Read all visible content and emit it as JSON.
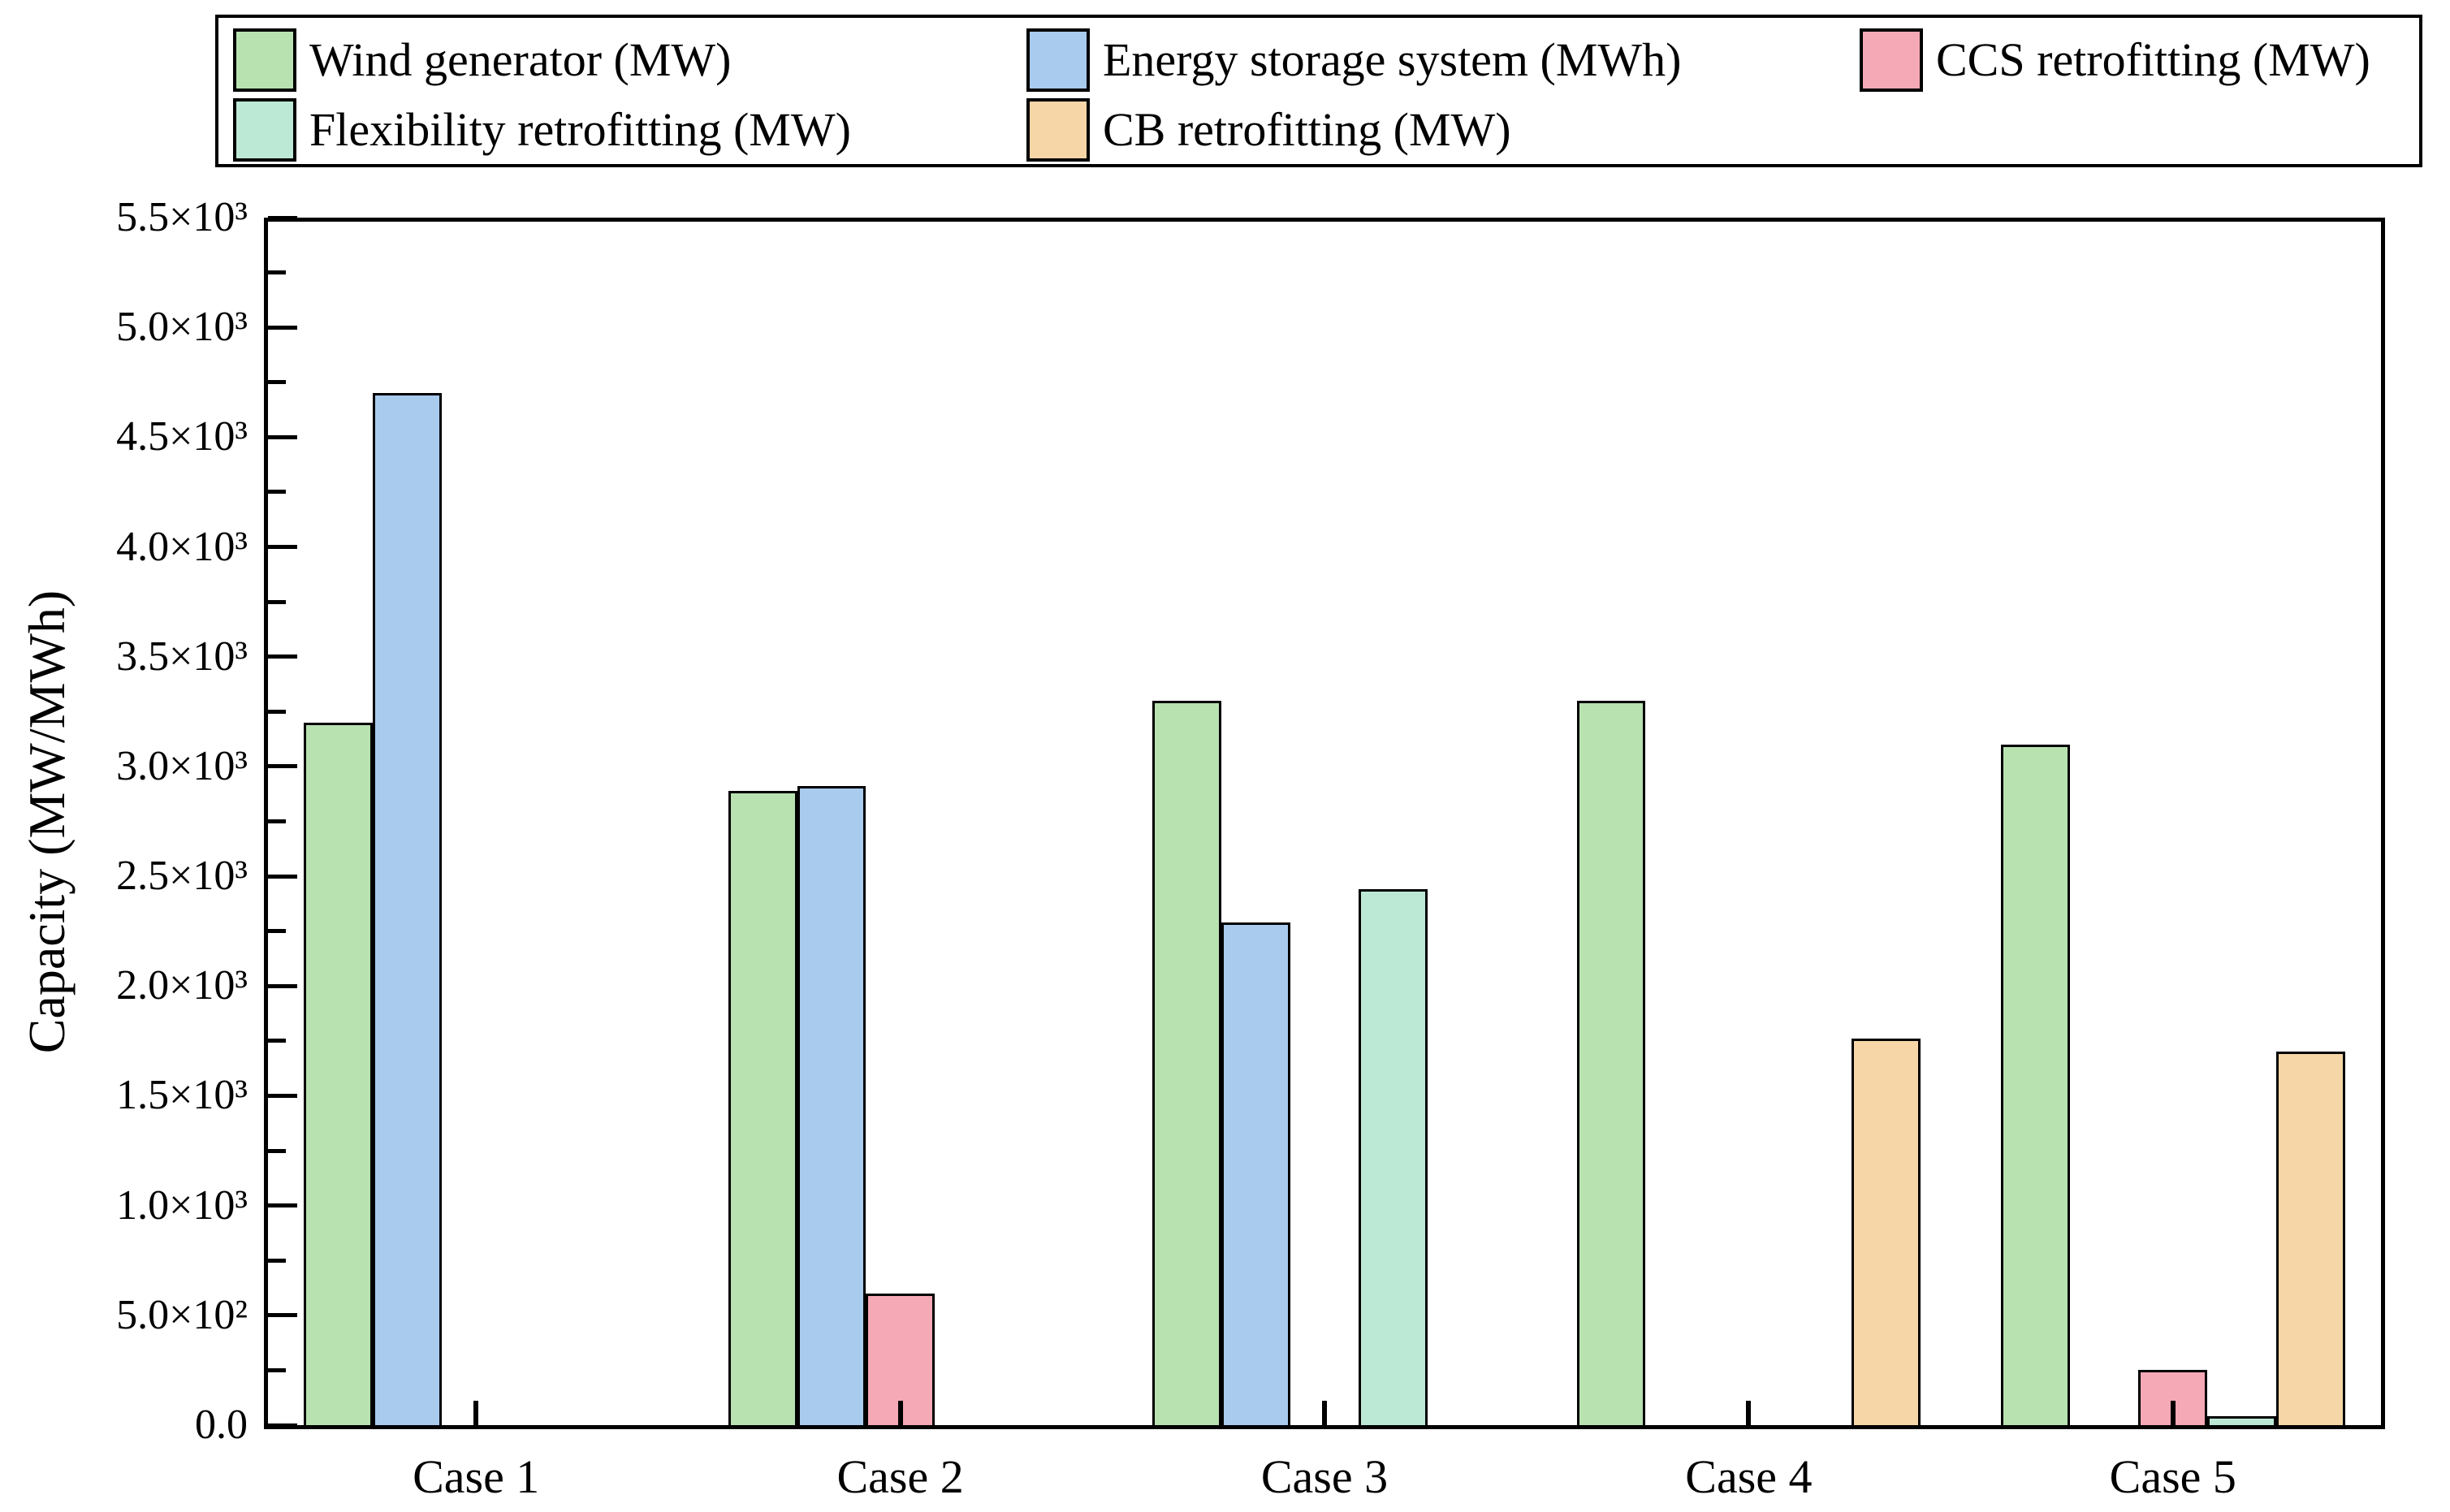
{
  "chart_data": {
    "type": "bar",
    "title": "",
    "xlabel": "",
    "ylabel": "Capacity (MW/MWh)",
    "ylim": [
      0,
      5500
    ],
    "y_major_step": 500,
    "y_minor_step": 250,
    "grid": false,
    "legend_position": "top-boxed",
    "legend_rows": [
      [
        0,
        1,
        2
      ],
      [
        3,
        4
      ]
    ],
    "categories": [
      "Case 1",
      "Case 2",
      "Case 3",
      "Case 4",
      "Case 5"
    ],
    "y_tick_labels": [
      "0.0",
      "5.0×10²",
      "1.0×10³",
      "1.5×10³",
      "2.0×10³",
      "2.5×10³",
      "3.0×10³",
      "3.5×10³",
      "4.0×10³",
      "4.5×10³",
      "5.0×10³",
      "5.5×10³"
    ],
    "bar_border_color": "#000000",
    "series": [
      {
        "name": "Wind generator (MW)",
        "color": "#b8e2b0",
        "values": [
          3200,
          2890,
          3300,
          3300,
          3100
        ]
      },
      {
        "name": "Energy storage system (MWh)",
        "color": "#a9cbee",
        "values": [
          4700,
          2910,
          2290,
          0,
          0
        ]
      },
      {
        "name": "CCS retrofitting (MW)",
        "color": "#f5a8b5",
        "values": [
          0,
          600,
          0,
          0,
          250
        ]
      },
      {
        "name": "Flexibility retrofitting (MW)",
        "color": "#bce9d5",
        "values": [
          0,
          0,
          2440,
          0,
          40
        ]
      },
      {
        "name": "CB retrofitting (MW)",
        "color": "#f6d6a7",
        "values": [
          0,
          0,
          0,
          1760,
          1700
        ]
      }
    ]
  }
}
